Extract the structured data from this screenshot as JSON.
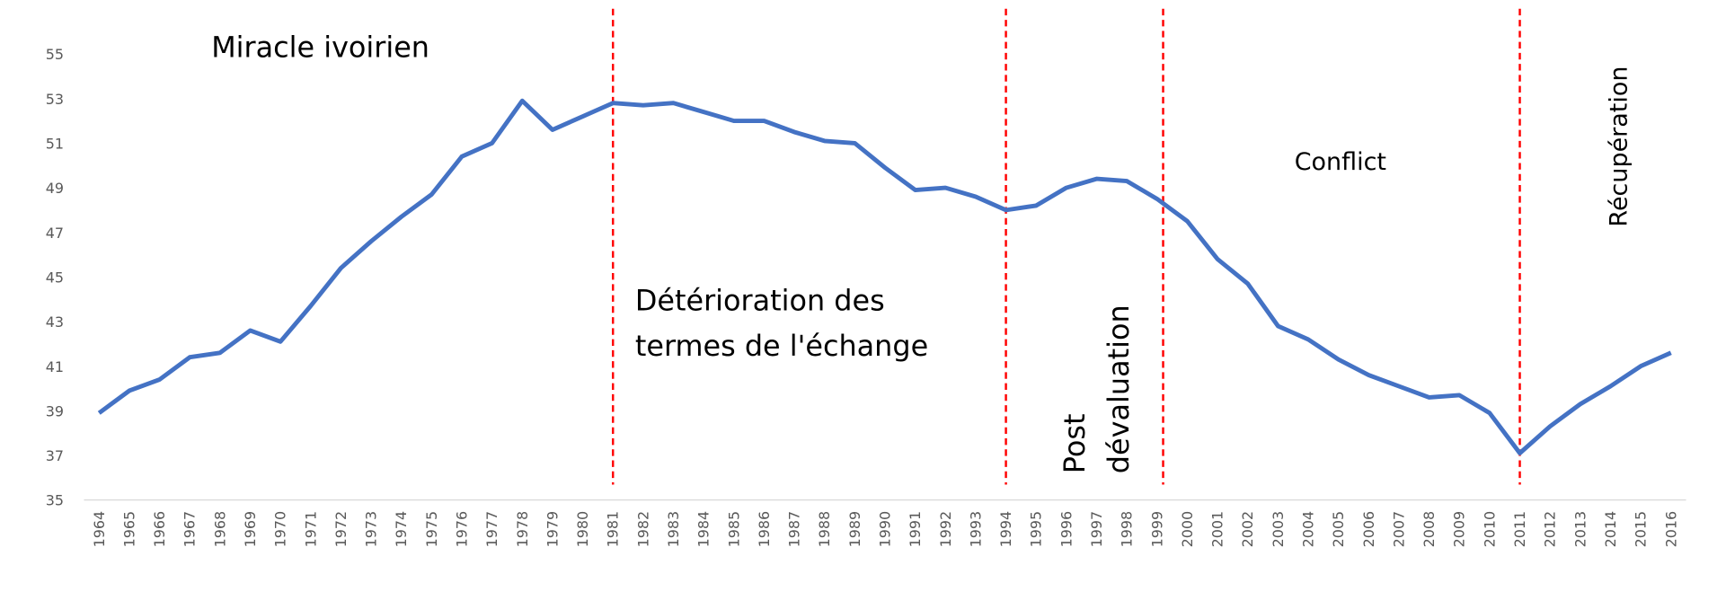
{
  "chart_data": {
    "type": "line",
    "x": [
      1964,
      1965,
      1966,
      1967,
      1968,
      1969,
      1970,
      1971,
      1972,
      1973,
      1974,
      1975,
      1976,
      1977,
      1978,
      1979,
      1980,
      1981,
      1982,
      1983,
      1984,
      1985,
      1986,
      1987,
      1988,
      1989,
      1990,
      1991,
      1992,
      1993,
      1994,
      1995,
      1996,
      1997,
      1998,
      1999,
      2000,
      2001,
      2002,
      2003,
      2004,
      2005,
      2006,
      2007,
      2008,
      2009,
      2010,
      2011,
      2012,
      2013,
      2014,
      2015,
      2016
    ],
    "series": [
      {
        "color": "#4472c4",
        "values": [
          38.9,
          39.9,
          40.4,
          41.4,
          41.6,
          42.6,
          42.1,
          43.7,
          45.4,
          46.6,
          47.7,
          48.7,
          50.4,
          51.0,
          52.9,
          51.6,
          52.2,
          52.8,
          52.7,
          52.8,
          52.4,
          52.0,
          52.0,
          51.5,
          51.1,
          51.0,
          49.9,
          48.9,
          49.0,
          48.6,
          48.0,
          48.2,
          49.0,
          49.4,
          49.3,
          48.5,
          47.5,
          45.8,
          44.7,
          42.8,
          42.2,
          41.3,
          40.6,
          40.1,
          39.6,
          39.7,
          38.9,
          37.1,
          38.3,
          39.3,
          40.1,
          41.0,
          41.6
        ]
      }
    ],
    "xlim": [
      1963.5,
      2016.5
    ],
    "ylim": [
      35,
      55
    ],
    "yticks": [
      35,
      37,
      39,
      41,
      43,
      45,
      47,
      49,
      51,
      53,
      55
    ],
    "period_lines": {
      "color": "#ff0000",
      "x": [
        1981,
        1994,
        1999.2,
        2011
      ]
    },
    "annotations": [
      {
        "lines": [
          "Miracle ivoirien"
        ]
      },
      {
        "lines": [
          "Détérioration des",
          "termes de l'échange"
        ]
      },
      {
        "lines": [
          "Post",
          "dévaluation"
        ]
      },
      {
        "lines": [
          "Conflict"
        ]
      },
      {
        "lines": [
          "Récupération"
        ]
      }
    ]
  }
}
